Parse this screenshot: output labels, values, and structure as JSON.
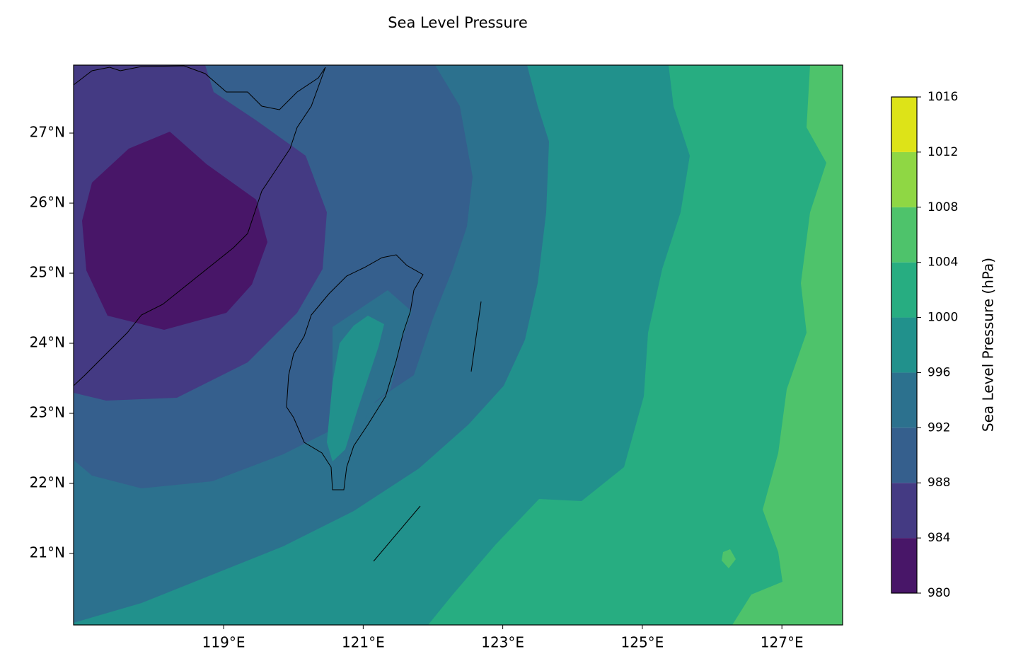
{
  "chart_data": {
    "type": "contour",
    "title": "Sea Level Pressure",
    "xlim": [
      116.85,
      127.87
    ],
    "ylim": [
      19.98,
      27.97
    ],
    "xticks": [
      {
        "value": 119,
        "label": "119°E"
      },
      {
        "value": 121,
        "label": "121°E"
      },
      {
        "value": 123,
        "label": "123°E"
      },
      {
        "value": 125,
        "label": "125°E"
      },
      {
        "value": 127,
        "label": "127°E"
      }
    ],
    "yticks": [
      {
        "value": 21,
        "label": "21°N"
      },
      {
        "value": 22,
        "label": "22°N"
      },
      {
        "value": 23,
        "label": "23°N"
      },
      {
        "value": 24,
        "label": "24°N"
      },
      {
        "value": 25,
        "label": "25°N"
      },
      {
        "value": 26,
        "label": "26°N"
      },
      {
        "value": 27,
        "label": "27°N"
      }
    ],
    "colorbar_label": "Sea Level Pressure (hPa)",
    "levels": [
      980,
      984,
      988,
      992,
      996,
      1000,
      1004,
      1008,
      1012,
      1016
    ],
    "colors": [
      "#481668",
      "#443a83",
      "#355f8d",
      "#2c718e",
      "#21918c",
      "#27ad81",
      "#4ec36b",
      "#8fd744",
      "#dde318"
    ]
  }
}
